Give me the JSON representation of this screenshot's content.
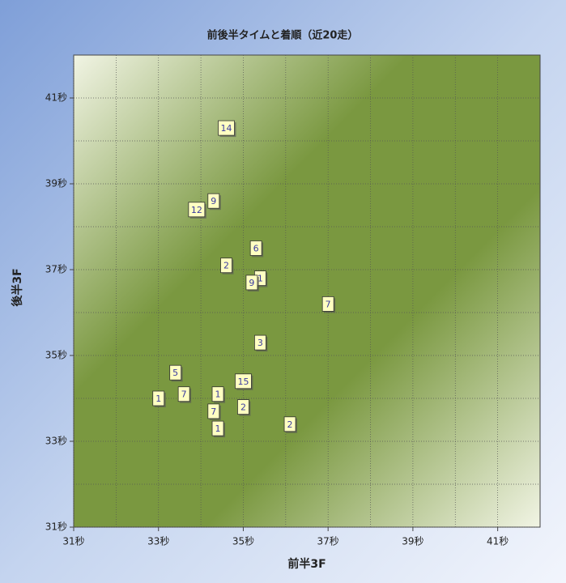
{
  "chart_data": {
    "type": "scatter",
    "title": "前後半タイムと着順（近20走）",
    "x_label": "前半3F",
    "y_label": "後半3F",
    "xlim": [
      31,
      42
    ],
    "ylim": [
      31,
      42
    ],
    "xticks": [
      {
        "value": 31,
        "label": "31秒"
      },
      {
        "value": 33,
        "label": "33秒"
      },
      {
        "value": 35,
        "label": "35秒"
      },
      {
        "value": 37,
        "label": "37秒"
      },
      {
        "value": 39,
        "label": "39秒"
      },
      {
        "value": 41,
        "label": "41秒"
      }
    ],
    "yticks": [
      {
        "value": 31,
        "label": "31秒"
      },
      {
        "value": 33,
        "label": "33秒"
      },
      {
        "value": 35,
        "label": "35秒"
      },
      {
        "value": 37,
        "label": "37秒"
      },
      {
        "value": 39,
        "label": "39秒"
      },
      {
        "value": 41,
        "label": "41秒"
      }
    ],
    "minor_grid": [
      32,
      34,
      36,
      38,
      40
    ],
    "grid": true,
    "points": [
      {
        "x": 34.6,
        "y": 40.3,
        "label": "14"
      },
      {
        "x": 34.3,
        "y": 38.6,
        "label": "9"
      },
      {
        "x": 33.9,
        "y": 38.4,
        "label": "12"
      },
      {
        "x": 35.3,
        "y": 37.5,
        "label": "6"
      },
      {
        "x": 34.6,
        "y": 37.1,
        "label": "2"
      },
      {
        "x": 35.4,
        "y": 36.8,
        "label": "1"
      },
      {
        "x": 35.2,
        "y": 36.7,
        "label": "9"
      },
      {
        "x": 37.0,
        "y": 36.2,
        "label": "7"
      },
      {
        "x": 35.4,
        "y": 35.3,
        "label": "3"
      },
      {
        "x": 33.4,
        "y": 34.6,
        "label": "5"
      },
      {
        "x": 35.0,
        "y": 34.4,
        "label": "15"
      },
      {
        "x": 33.0,
        "y": 34.0,
        "label": "1"
      },
      {
        "x": 33.6,
        "y": 34.1,
        "label": "7"
      },
      {
        "x": 34.4,
        "y": 34.1,
        "label": "1"
      },
      {
        "x": 35.0,
        "y": 33.8,
        "label": "2"
      },
      {
        "x": 34.3,
        "y": 33.7,
        "label": "7"
      },
      {
        "x": 34.4,
        "y": 33.3,
        "label": "1"
      },
      {
        "x": 36.1,
        "y": 33.4,
        "label": "2"
      }
    ]
  }
}
